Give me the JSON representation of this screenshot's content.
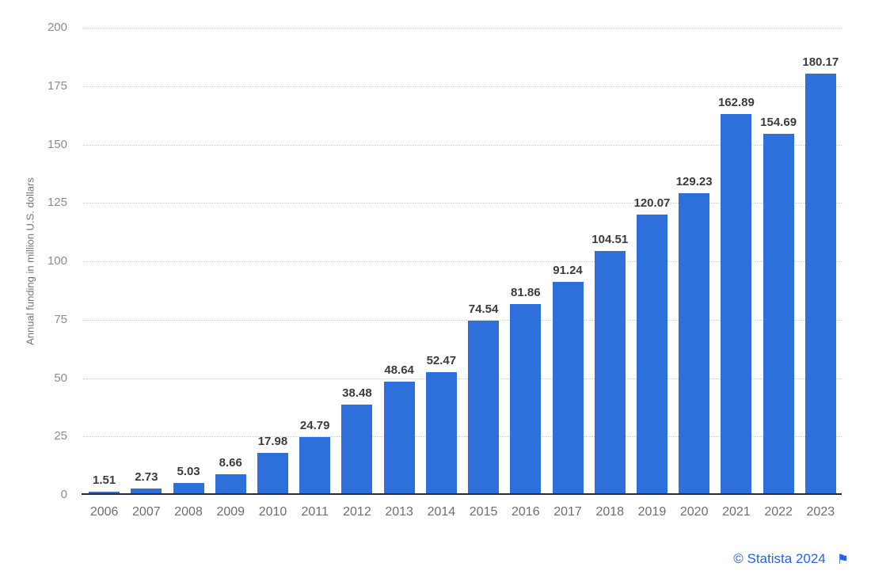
{
  "chart_data": {
    "type": "bar",
    "title": "",
    "xlabel": "",
    "ylabel": "Annual funding in million U.S. dollars",
    "categories": [
      "2006",
      "2007",
      "2008",
      "2009",
      "2010",
      "2011",
      "2012",
      "2013",
      "2014",
      "2015",
      "2016",
      "2017",
      "2018",
      "2019",
      "2020",
      "2021",
      "2022",
      "2023"
    ],
    "values": [
      1.51,
      2.73,
      5.03,
      8.66,
      17.98,
      24.79,
      38.48,
      48.64,
      52.47,
      74.54,
      81.86,
      91.24,
      104.51,
      120.07,
      129.23,
      162.89,
      154.69,
      180.17
    ],
    "ylim": [
      0,
      200
    ],
    "yticks": [
      0,
      25,
      50,
      75,
      100,
      125,
      150,
      175,
      200
    ],
    "grid": "horizontal-dotted",
    "legend": "none",
    "bar_color": "#2d70db",
    "value_label_color": "#3c3c3c",
    "tick_label_color": "#8c8c8c"
  },
  "attribution": {
    "text": "© Statista 2024",
    "flag_icon": "⚑",
    "color": "#2563eb"
  }
}
